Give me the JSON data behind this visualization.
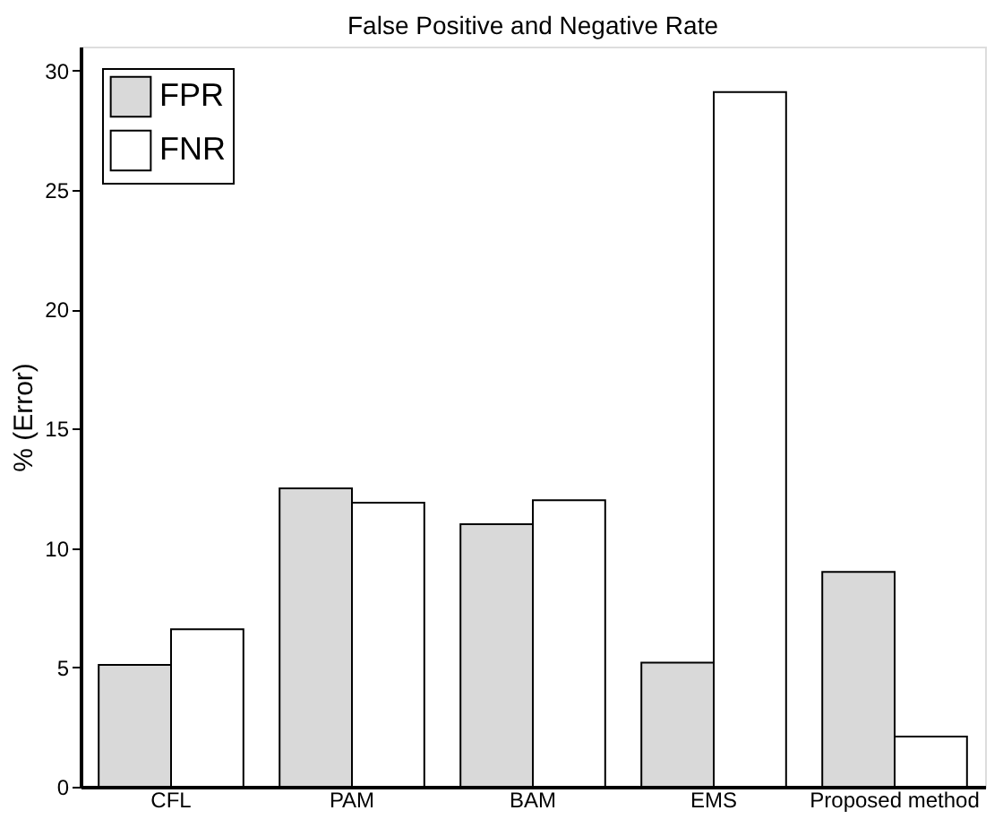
{
  "chart_data": {
    "type": "bar",
    "title": "False Positive and Negative Rate",
    "ylabel": "% (Error)",
    "categories": [
      "CFL",
      "PAM",
      "BAM",
      "EMS",
      "Proposed method"
    ],
    "series": [
      {
        "name": "FPR",
        "color": "#d9d9d9",
        "values": [
          5.1,
          12.5,
          11.0,
          5.2,
          9.0
        ]
      },
      {
        "name": "FNR",
        "color": "#ffffff",
        "values": [
          6.6,
          11.9,
          12.0,
          29.1,
          2.1
        ]
      }
    ],
    "ylim": [
      0,
      31
    ],
    "yticks": [
      0,
      5,
      10,
      15,
      20,
      25,
      30
    ],
    "grid": false,
    "legend": "top left"
  }
}
